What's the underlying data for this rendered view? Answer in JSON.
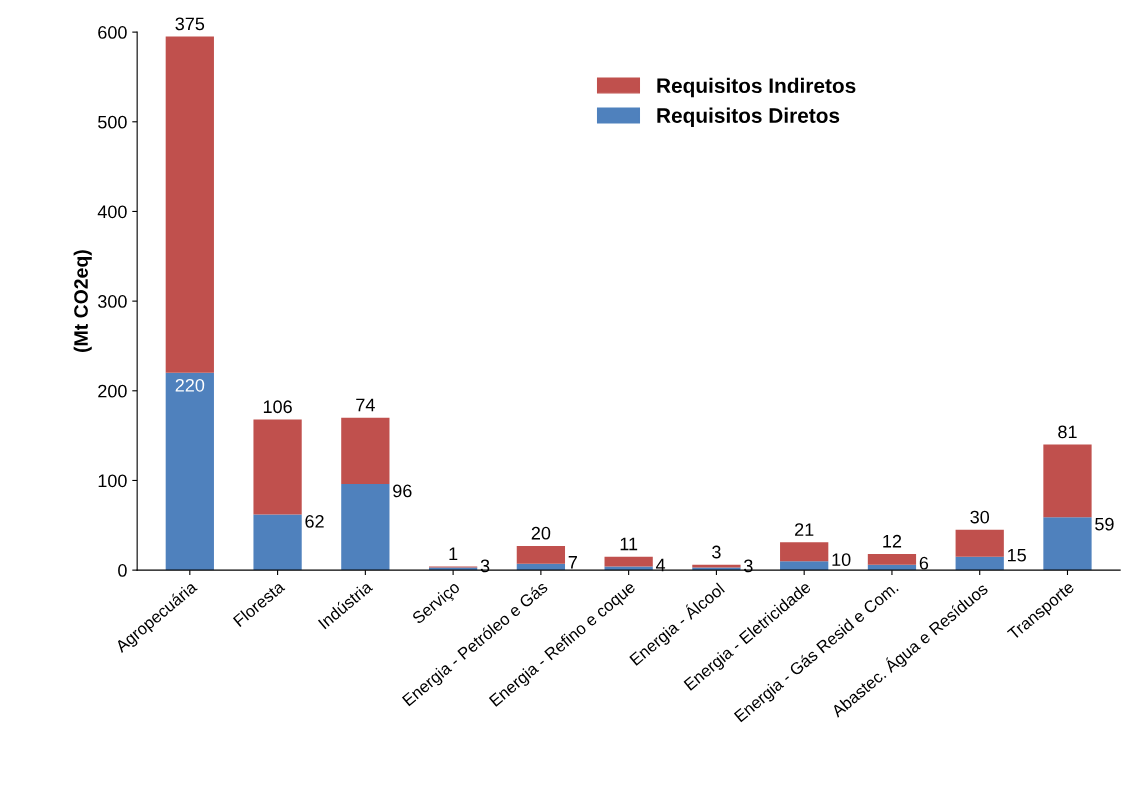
{
  "chart_data": {
    "type": "bar",
    "ylabel": "(Mt CO2eq)",
    "categories": [
      "Agropecuária",
      "Floresta",
      "Indústria",
      "Serviço",
      "Energia - Petróleo e Gás",
      "Energia - Refino e coque",
      "Energia - Álcool",
      "Energia - Eletricidade",
      "Energia - Gás Resid e Com.",
      "Abastec. Água e Resíduos",
      "Transporte"
    ],
    "series": [
      {
        "name": "Requisitos Diretos",
        "color": "#4f81bd",
        "values": [
          220,
          62,
          96,
          3,
          7,
          4,
          3,
          10,
          6,
          15,
          59
        ]
      },
      {
        "name": "Requisitos Indiretos",
        "color": "#c0504d",
        "values": [
          375,
          106,
          74,
          1,
          20,
          11,
          3,
          21,
          12,
          30,
          81
        ]
      }
    ],
    "stacked": true,
    "data_labels": true,
    "ylim": [
      0,
      600
    ],
    "yticks": [
      0,
      100,
      200,
      300,
      400,
      500,
      600
    ],
    "grid": false,
    "legend": "top"
  }
}
